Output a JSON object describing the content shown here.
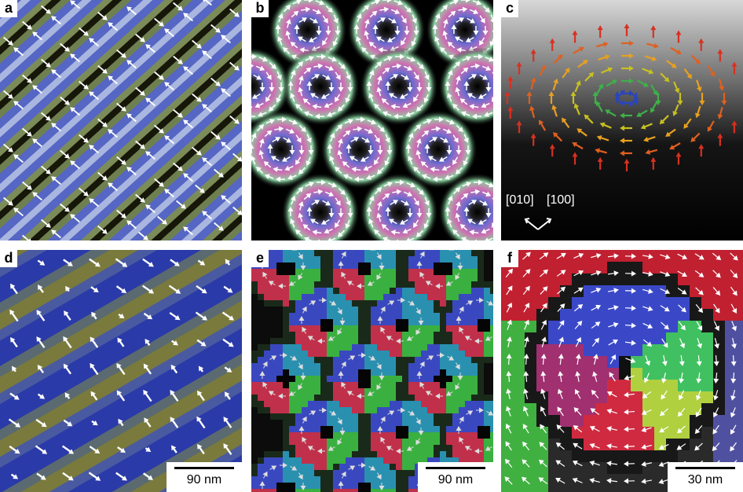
{
  "panels": {
    "a": {
      "label": "a"
    },
    "b": {
      "label": "b"
    },
    "c": {
      "label": "c",
      "direction_labels": [
        "[010]",
        "[100]"
      ]
    },
    "d": {
      "label": "d",
      "scale_bar": "90 nm"
    },
    "e": {
      "label": "e",
      "scale_bar": "90 nm"
    },
    "f": {
      "label": "f",
      "scale_bar": "30 nm"
    }
  },
  "colors": {
    "background": "#ffffff",
    "stripe_blue": "#5a6fd0",
    "stripe_green": "#8fb07a",
    "stripe_dark": "#1a1a10",
    "skyrmion_pink": "#e05a9a",
    "skyrmion_green": "#4fc080",
    "skyrmion_blue": "#4a5ad0",
    "arrow": "#ffffff"
  }
}
